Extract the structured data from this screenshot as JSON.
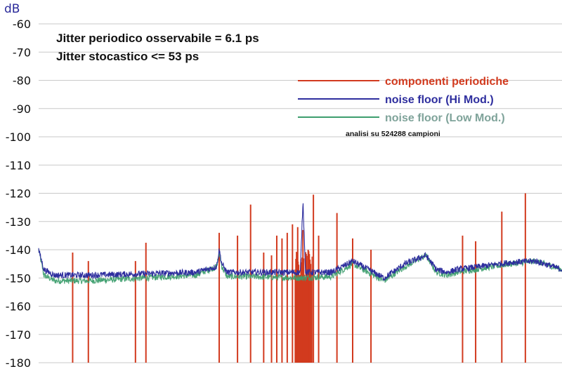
{
  "chart_data": {
    "type": "line",
    "ylabel": "dB",
    "xlabel": "",
    "ylim": [
      -180,
      -60
    ],
    "yticks": [
      -60,
      -70,
      -80,
      -90,
      -100,
      -110,
      -120,
      -130,
      -140,
      -150,
      -160,
      -170,
      -180
    ],
    "xlim": [
      0,
      1
    ],
    "grid": true,
    "annotations": [
      "Jitter  periodico osservabile =  6.1 ps",
      "Jitter stocastico <=  53 ps"
    ],
    "note": "analisi su 524288 campioni",
    "legend_placement": "top-right",
    "series": [
      {
        "name": "componenti  periodiche",
        "color": "#d23a1e",
        "kind": "spikes",
        "x": [
          0.065,
          0.095,
          0.185,
          0.205,
          0.345,
          0.38,
          0.405,
          0.43,
          0.445,
          0.455,
          0.465,
          0.475,
          0.485,
          0.495,
          0.505,
          0.515,
          0.525,
          0.535,
          0.57,
          0.6,
          0.635,
          0.81,
          0.835,
          0.885,
          0.93
        ],
        "values": [
          -141,
          -144,
          -144,
          -137.5,
          -134,
          -135,
          -124,
          -141,
          -142,
          -135,
          -136,
          -134,
          -131,
          -132,
          -133,
          -140,
          -120.5,
          -135,
          -127,
          -136,
          -140,
          -135,
          -137,
          -126.5,
          -120
        ]
      },
      {
        "name": "noise floor (Hi Mod.)",
        "color": "#2e2e9e",
        "x": [
          0.0,
          0.01,
          0.03,
          0.1,
          0.2,
          0.3,
          0.34,
          0.345,
          0.35,
          0.36,
          0.4,
          0.5,
          0.505,
          0.51,
          0.52,
          0.56,
          0.6,
          0.64,
          0.66,
          0.7,
          0.74,
          0.76,
          0.78,
          0.8,
          0.9,
          0.95,
          1.0
        ],
        "values": [
          -140,
          -147,
          -149,
          -149,
          -148.5,
          -148,
          -146,
          -140,
          -145,
          -148,
          -148,
          -148,
          -122.5,
          -148,
          -148,
          -148,
          -144,
          -148,
          -150,
          -145,
          -142,
          -147,
          -148,
          -147,
          -144.5,
          -144,
          -147
        ]
      },
      {
        "name": "noise floor (Low Mod.)",
        "color": "#3d9e6e",
        "x": [
          0.0,
          0.01,
          0.03,
          0.1,
          0.2,
          0.3,
          0.34,
          0.345,
          0.35,
          0.36,
          0.4,
          0.5,
          0.56,
          0.6,
          0.64,
          0.66,
          0.7,
          0.74,
          0.76,
          0.78,
          0.8,
          0.9,
          0.95,
          1.0
        ],
        "values": [
          -140,
          -149,
          -151,
          -151,
          -150,
          -149,
          -146,
          -141,
          -146,
          -149.5,
          -149.5,
          -150,
          -149.5,
          -145,
          -149,
          -151,
          -146,
          -142,
          -148,
          -149,
          -148,
          -145,
          -144,
          -147
        ]
      }
    ]
  }
}
